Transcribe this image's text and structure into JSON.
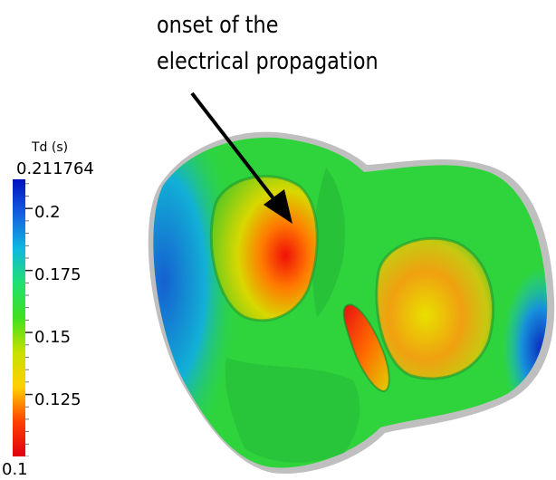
{
  "annotation": {
    "line1": "onset of the",
    "line2": "electrical propagation"
  },
  "colorbar": {
    "title": "Td (s)",
    "max_label": "0.211764",
    "min_label": "0.1",
    "tick_labels": [
      "0.2",
      "0.175",
      "0.15",
      "0.125"
    ],
    "range": [
      0.1,
      0.211764
    ],
    "ticks": [
      0.2,
      0.175,
      0.15,
      0.125
    ],
    "colormap": [
      "#0010c0",
      "#1560e0",
      "#10b8e0",
      "#20e070",
      "#40e020",
      "#c8e000",
      "#ffd000",
      "#ff4000",
      "#e00010"
    ]
  },
  "colors": {
    "surface_blue": "#1e6fd0",
    "surface_cyan": "#19c4d8",
    "surface_green": "#2fd840",
    "surface_yellow": "#e6e000",
    "surface_orange": "#ff7a00",
    "surface_red": "#e81010",
    "shadow_grey": "#b8b8b8"
  }
}
